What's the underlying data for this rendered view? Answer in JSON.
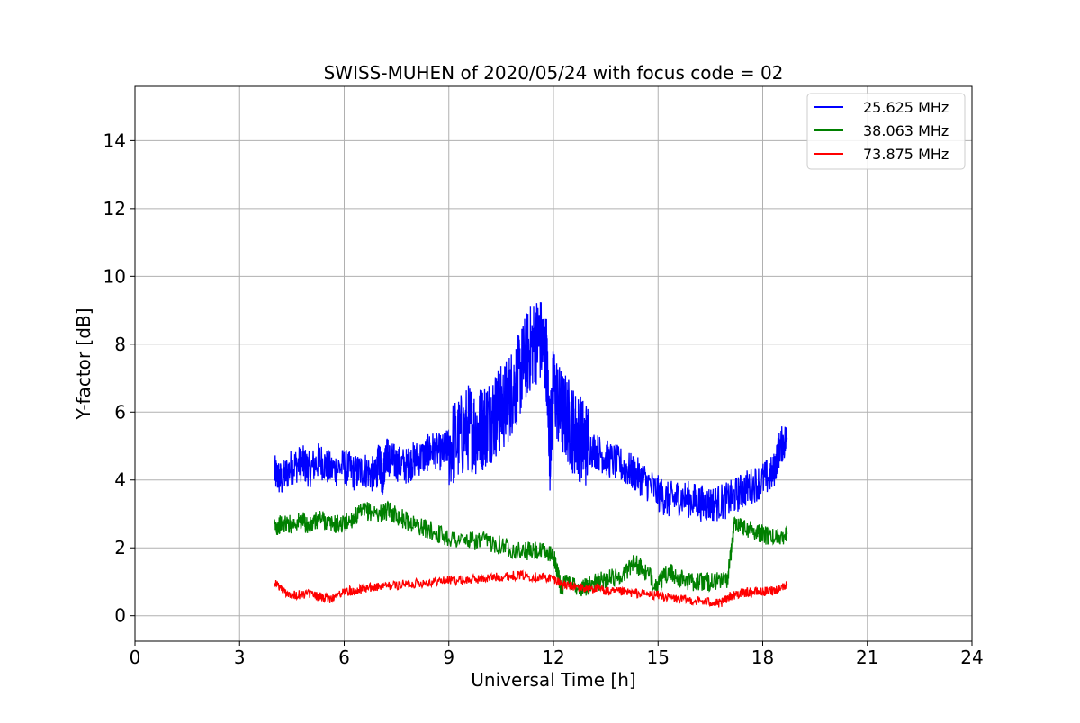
{
  "chart_data": {
    "type": "line",
    "title": "SWISS-MUHEN of 2020/05/24 with focus code = 02",
    "xlabel": "Universal Time [h]",
    "ylabel": "Y-factor [dB]",
    "xlim": [
      0,
      24
    ],
    "ylim": [
      -0.75,
      15.6
    ],
    "xticks": [
      0,
      3,
      6,
      9,
      12,
      15,
      18,
      21,
      24
    ],
    "yticks": [
      0,
      2,
      4,
      6,
      8,
      10,
      12,
      14
    ],
    "grid": true,
    "legend_position": "top-right",
    "series": [
      {
        "name": "25.625 MHz",
        "color": "#0000ff",
        "x": [
          4.0,
          4.2,
          4.5,
          4.8,
          5.0,
          5.3,
          5.6,
          6.0,
          6.3,
          6.6,
          6.9,
          7.0,
          7.1,
          7.2,
          7.3,
          7.5,
          7.8,
          8.0,
          8.3,
          8.5,
          8.8,
          9.0,
          9.3,
          9.6,
          9.8,
          10.0,
          10.2,
          10.4,
          10.6,
          10.8,
          11.0,
          11.2,
          11.4,
          11.6,
          11.8,
          11.9,
          12.0,
          12.2,
          12.4,
          12.6,
          12.8,
          13.0,
          13.3,
          13.6,
          14.0,
          14.3,
          14.6,
          15.0,
          15.3,
          15.6,
          16.0,
          16.3,
          16.6,
          17.0,
          17.3,
          17.6,
          18.0,
          18.3,
          18.5,
          18.7
        ],
        "y": [
          4.2,
          4.0,
          4.4,
          4.5,
          4.3,
          4.6,
          4.3,
          4.4,
          4.2,
          4.3,
          4.1,
          4.6,
          4.0,
          4.8,
          4.6,
          4.5,
          4.4,
          4.6,
          4.7,
          4.9,
          4.8,
          5.0,
          5.2,
          5.6,
          5.4,
          5.6,
          5.8,
          6.0,
          6.2,
          6.6,
          7.0,
          7.6,
          8.0,
          8.2,
          7.6,
          5.0,
          6.8,
          6.0,
          5.8,
          5.4,
          5.2,
          5.0,
          4.8,
          4.6,
          4.4,
          4.2,
          4.0,
          3.6,
          3.4,
          3.5,
          3.4,
          3.3,
          3.3,
          3.4,
          3.6,
          3.8,
          4.0,
          4.2,
          5.0,
          5.2
        ]
      },
      {
        "name": "38.063 MHz",
        "color": "#008000",
        "x": [
          4.0,
          4.2,
          4.5,
          4.8,
          5.0,
          5.3,
          5.6,
          6.0,
          6.3,
          6.6,
          7.0,
          7.3,
          7.6,
          8.0,
          8.5,
          9.0,
          9.5,
          10.0,
          10.5,
          11.0,
          11.5,
          12.0,
          12.2,
          12.5,
          12.8,
          13.0,
          13.3,
          13.6,
          14.0,
          14.3,
          14.6,
          15.0,
          15.3,
          15.6,
          16.0,
          16.3,
          16.6,
          17.0,
          17.2,
          17.5,
          17.8,
          18.0,
          18.3,
          18.7
        ],
        "y": [
          2.6,
          2.7,
          2.7,
          2.8,
          2.6,
          2.9,
          2.7,
          2.7,
          2.9,
          3.1,
          3.0,
          3.1,
          2.9,
          2.7,
          2.5,
          2.3,
          2.2,
          2.2,
          2.1,
          1.9,
          1.9,
          1.8,
          0.9,
          1.0,
          0.8,
          0.9,
          1.0,
          1.1,
          1.2,
          1.6,
          1.3,
          0.9,
          1.3,
          1.1,
          1.0,
          1.0,
          1.0,
          1.1,
          2.8,
          2.6,
          2.5,
          2.4,
          2.3,
          2.4
        ]
      },
      {
        "name": "73.875 MHz",
        "color": "#ff0000",
        "x": [
          4.0,
          4.3,
          4.6,
          5.0,
          5.3,
          5.6,
          6.0,
          6.3,
          6.6,
          7.0,
          7.5,
          8.0,
          8.5,
          9.0,
          9.5,
          10.0,
          10.5,
          11.0,
          11.5,
          12.0,
          12.3,
          12.6,
          13.0,
          13.3,
          13.6,
          14.0,
          14.5,
          15.0,
          15.5,
          16.0,
          16.5,
          16.8,
          17.0,
          17.3,
          17.6,
          18.0,
          18.3,
          18.7
        ],
        "y": [
          1.0,
          0.7,
          0.6,
          0.65,
          0.55,
          0.5,
          0.7,
          0.75,
          0.8,
          0.85,
          0.9,
          0.95,
          1.0,
          1.05,
          1.05,
          1.1,
          1.15,
          1.2,
          1.15,
          1.1,
          0.9,
          0.85,
          0.8,
          0.8,
          0.7,
          0.7,
          0.65,
          0.6,
          0.5,
          0.45,
          0.4,
          0.35,
          0.55,
          0.65,
          0.7,
          0.7,
          0.75,
          0.9
        ]
      }
    ]
  }
}
